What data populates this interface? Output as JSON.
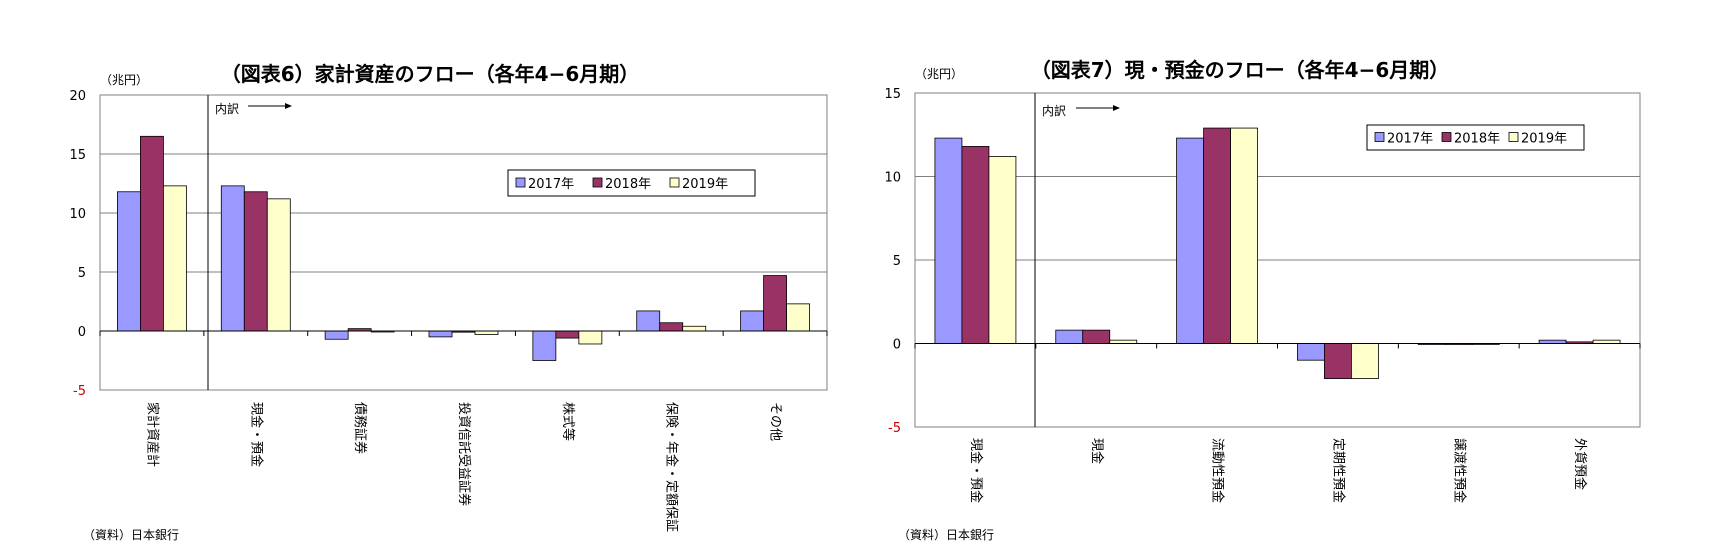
{
  "chart_data": [
    {
      "type": "bar",
      "title": "（図表6）家計資産のフロー（各年4−6月期）",
      "unit": "（兆円）",
      "note": "内訳",
      "source": "（資料）日本銀行",
      "ylim": [
        -5,
        20
      ],
      "yticks": [
        20,
        15,
        10,
        5,
        0,
        -5
      ],
      "grid": true,
      "legend_position": "top-right",
      "categories": [
        "家計資産計",
        "現金・預金",
        "債務証券",
        "投資信託受益証券",
        "株式等",
        "保険・年金・定額保証",
        "その他"
      ],
      "series": [
        {
          "name": "2017年",
          "color": "#9999ff",
          "values": [
            11.8,
            12.3,
            -0.7,
            -0.5,
            -2.5,
            1.7,
            1.7
          ]
        },
        {
          "name": "2018年",
          "color": "#993366",
          "values": [
            16.5,
            11.8,
            0.2,
            -0.1,
            -0.6,
            0.7,
            4.7
          ]
        },
        {
          "name": "2019年",
          "color": "#ffffcc",
          "values": [
            12.3,
            11.2,
            -0.05,
            -0.3,
            -1.1,
            0.4,
            2.3
          ]
        }
      ]
    },
    {
      "type": "bar",
      "title": "（図表7）現・預金のフロー（各年4−6月期）",
      "unit": "（兆円）",
      "note": "内訳",
      "source": "（資料）日本銀行",
      "ylim": [
        -5,
        15
      ],
      "yticks": [
        15,
        10,
        5,
        0,
        -5
      ],
      "grid": true,
      "legend_position": "top-right",
      "categories": [
        "現金・預金",
        "現金",
        "流動性預金",
        "定期性預金",
        "譲渡性預金",
        "外貨預金"
      ],
      "series": [
        {
          "name": "2017年",
          "color": "#9999ff",
          "values": [
            12.3,
            0.8,
            12.3,
            -1.0,
            -0.05,
            0.2
          ]
        },
        {
          "name": "2018年",
          "color": "#993366",
          "values": [
            11.8,
            0.8,
            12.9,
            -2.1,
            -0.05,
            0.1
          ]
        },
        {
          "name": "2019年",
          "color": "#ffffcc",
          "values": [
            11.2,
            0.2,
            12.9,
            -2.1,
            -0.05,
            0.2
          ]
        }
      ]
    }
  ]
}
